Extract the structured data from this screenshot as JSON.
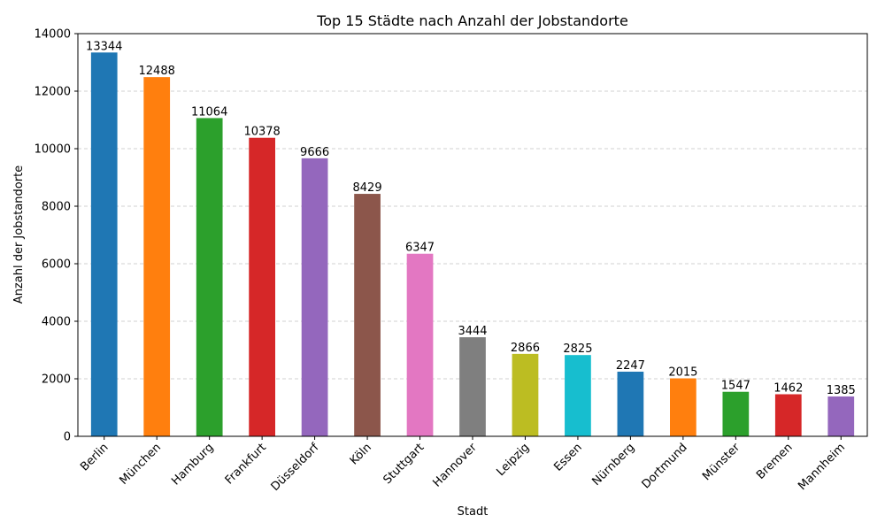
{
  "chart_data": {
    "type": "bar",
    "title": "Top 15 Städte nach Anzahl der Jobstandorte",
    "xlabel": "Stadt",
    "ylabel": "Anzahl der Jobstandorte",
    "ylim": [
      0,
      14000
    ],
    "yticks": [
      0,
      2000,
      4000,
      6000,
      8000,
      10000,
      12000,
      14000
    ],
    "grid": "y-dashed",
    "categories": [
      "Berlin",
      "München",
      "Hamburg",
      "Frankfurt",
      "Düsseldorf",
      "Köln",
      "Stuttgart",
      "Hannover",
      "Leipzig",
      "Essen",
      "Nürnberg",
      "Dortmund",
      "Münster",
      "Bremen",
      "Mannheim"
    ],
    "values": [
      13344,
      12488,
      11064,
      10378,
      9666,
      8429,
      6347,
      3444,
      2866,
      2825,
      2247,
      2015,
      1547,
      1462,
      1385
    ],
    "colors": [
      "#1f77b4",
      "#ff7f0e",
      "#2ca02c",
      "#d62728",
      "#9467bd",
      "#8c564b",
      "#e377c2",
      "#7f7f7f",
      "#bcbd22",
      "#17becf",
      "#1f77b4",
      "#ff7f0e",
      "#2ca02c",
      "#d62728",
      "#9467bd"
    ]
  }
}
